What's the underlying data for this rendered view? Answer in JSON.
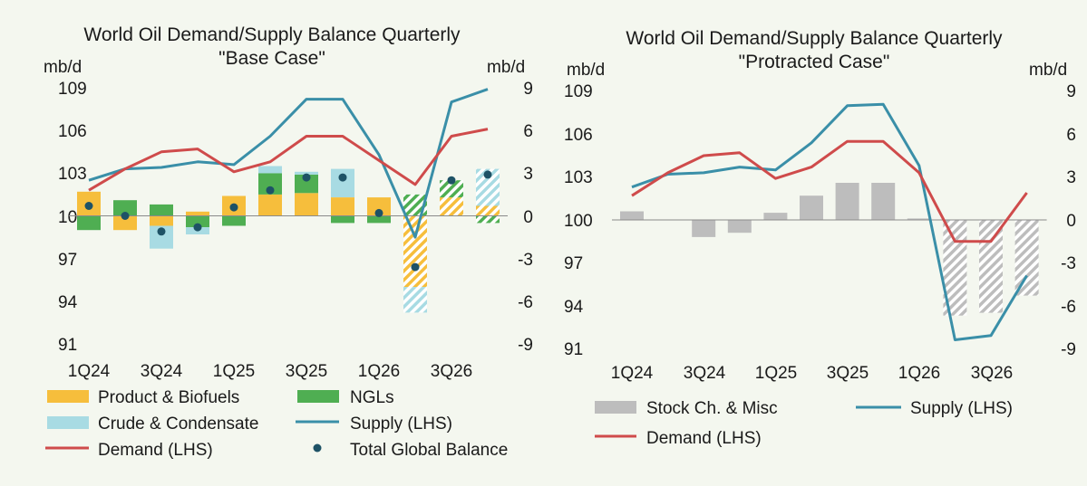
{
  "colors": {
    "background": "#f4f7ef",
    "product_biofuels": "#f6be3c",
    "ngls": "#4fae52",
    "crude_condensate": "#a8dbe3",
    "supply": "#3a8fa8",
    "demand": "#cf4b4b",
    "balance_dot": "#1e5266",
    "stock_change": "#bdbdbd"
  },
  "chart_data": [
    {
      "type": "bar",
      "title_line1": "World Oil Demand/Supply Balance Quarterly",
      "title_line2": "\"Base Case\"",
      "left_unit": "mb/d",
      "right_unit": "mb/d",
      "left_ylim": [
        91,
        109
      ],
      "right_ylim": [
        -9,
        9
      ],
      "left_ticks": [
        "109",
        "106",
        "103",
        "100",
        "97",
        "94",
        "91"
      ],
      "right_ticks": [
        "9",
        "6",
        "3",
        "0",
        "-3",
        "-6",
        "-9"
      ],
      "x_tick_labels": [
        "1Q24",
        "3Q24",
        "1Q25",
        "3Q25",
        "1Q26",
        "3Q26"
      ],
      "forecast_from_index": 9,
      "quarters": [
        "1Q24",
        "2Q24",
        "3Q24",
        "4Q24",
        "1Q25",
        "2Q25",
        "3Q25",
        "4Q25",
        "1Q26",
        "2Q26",
        "3Q26",
        "4Q26"
      ],
      "stacked_series": [
        {
          "name": "Product & Biofuels",
          "color_key": "product_biofuels",
          "values": [
            1.7,
            -1.0,
            -0.7,
            0.3,
            1.4,
            1.5,
            1.6,
            1.3,
            1.3,
            -5.0,
            1.3,
            0.7
          ]
        },
        {
          "name": "NGLs",
          "color_key": "ngls",
          "values": [
            -1.0,
            1.1,
            0.8,
            -0.8,
            -0.7,
            1.5,
            1.3,
            -0.5,
            -0.5,
            1.5,
            1.2,
            -0.5
          ]
        },
        {
          "name": "Crude & Condensate",
          "color_key": "crude_condensate",
          "values": [
            0.0,
            0.0,
            -1.6,
            -0.5,
            0.0,
            0.5,
            0.2,
            2.0,
            0.0,
            -1.8,
            0.0,
            2.6
          ]
        }
      ],
      "line_series": [
        {
          "name": "Supply (LHS)",
          "color_key": "supply",
          "values": [
            102.5,
            103.3,
            103.4,
            103.8,
            103.6,
            105.6,
            108.2,
            108.2,
            104.3,
            98.5,
            108.0,
            108.9
          ]
        },
        {
          "name": "Demand (LHS)",
          "color_key": "demand",
          "values": [
            101.8,
            103.3,
            104.5,
            104.7,
            103.1,
            103.8,
            105.6,
            105.6,
            103.9,
            102.2,
            105.6,
            106.1
          ]
        }
      ],
      "balance_series": {
        "name": "Total Global Balance",
        "color_key": "balance_dot",
        "values": [
          0.7,
          0.0,
          -1.1,
          -0.8,
          0.6,
          1.8,
          2.7,
          2.7,
          0.2,
          -3.6,
          2.5,
          2.9
        ]
      },
      "legend": [
        {
          "label": "Product & Biofuels",
          "kind": "bar",
          "color_key": "product_biofuels"
        },
        {
          "label": "NGLs",
          "kind": "bar",
          "color_key": "ngls"
        },
        {
          "label": "Crude & Condensate",
          "kind": "bar",
          "color_key": "crude_condensate"
        },
        {
          "label": "Supply (LHS)",
          "kind": "line",
          "color_key": "supply"
        },
        {
          "label": "Demand (LHS)",
          "kind": "line",
          "color_key": "demand"
        },
        {
          "label": "Total Global Balance",
          "kind": "dot",
          "color_key": "balance_dot"
        }
      ]
    },
    {
      "type": "bar",
      "title_line1": "World Oil Demand/Supply Balance Quarterly",
      "title_line2": "\"Protracted Case\"",
      "left_unit": "mb/d",
      "right_unit": "mb/d",
      "left_ylim": [
        91,
        109
      ],
      "right_ylim": [
        -9,
        9
      ],
      "left_ticks": [
        "109",
        "106",
        "103",
        "100",
        "97",
        "94",
        "91"
      ],
      "right_ticks": [
        "9",
        "6",
        "3",
        "0",
        "-3",
        "-6",
        "-9"
      ],
      "x_tick_labels": [
        "1Q24",
        "3Q24",
        "1Q25",
        "3Q25",
        "1Q26",
        "3Q26"
      ],
      "forecast_from_index": 9,
      "quarters": [
        "1Q24",
        "2Q24",
        "3Q24",
        "4Q24",
        "1Q25",
        "2Q25",
        "3Q25",
        "4Q25",
        "1Q26",
        "2Q26",
        "3Q26",
        "4Q26"
      ],
      "stacked_series": [
        {
          "name": "Stock Ch. & Misc",
          "color_key": "stock_change",
          "values": [
            0.6,
            0.0,
            -1.2,
            -0.9,
            0.5,
            1.7,
            2.6,
            2.6,
            0.1,
            -6.7,
            -6.5,
            -5.3
          ]
        }
      ],
      "line_series": [
        {
          "name": "Supply (LHS)",
          "color_key": "supply",
          "values": [
            102.3,
            103.2,
            103.3,
            103.7,
            103.5,
            105.4,
            108.0,
            108.1,
            103.8,
            91.6,
            91.9,
            96.1
          ]
        },
        {
          "name": "Demand (LHS)",
          "color_key": "demand",
          "values": [
            101.7,
            103.3,
            104.5,
            104.7,
            102.9,
            103.7,
            105.5,
            105.5,
            103.3,
            98.5,
            98.5,
            101.9
          ]
        }
      ],
      "legend": [
        {
          "label": "Stock Ch. & Misc",
          "kind": "bar",
          "color_key": "stock_change"
        },
        {
          "label": "Supply (LHS)",
          "kind": "line",
          "color_key": "supply"
        },
        {
          "label": "Demand (LHS)",
          "kind": "line",
          "color_key": "demand"
        }
      ]
    }
  ]
}
